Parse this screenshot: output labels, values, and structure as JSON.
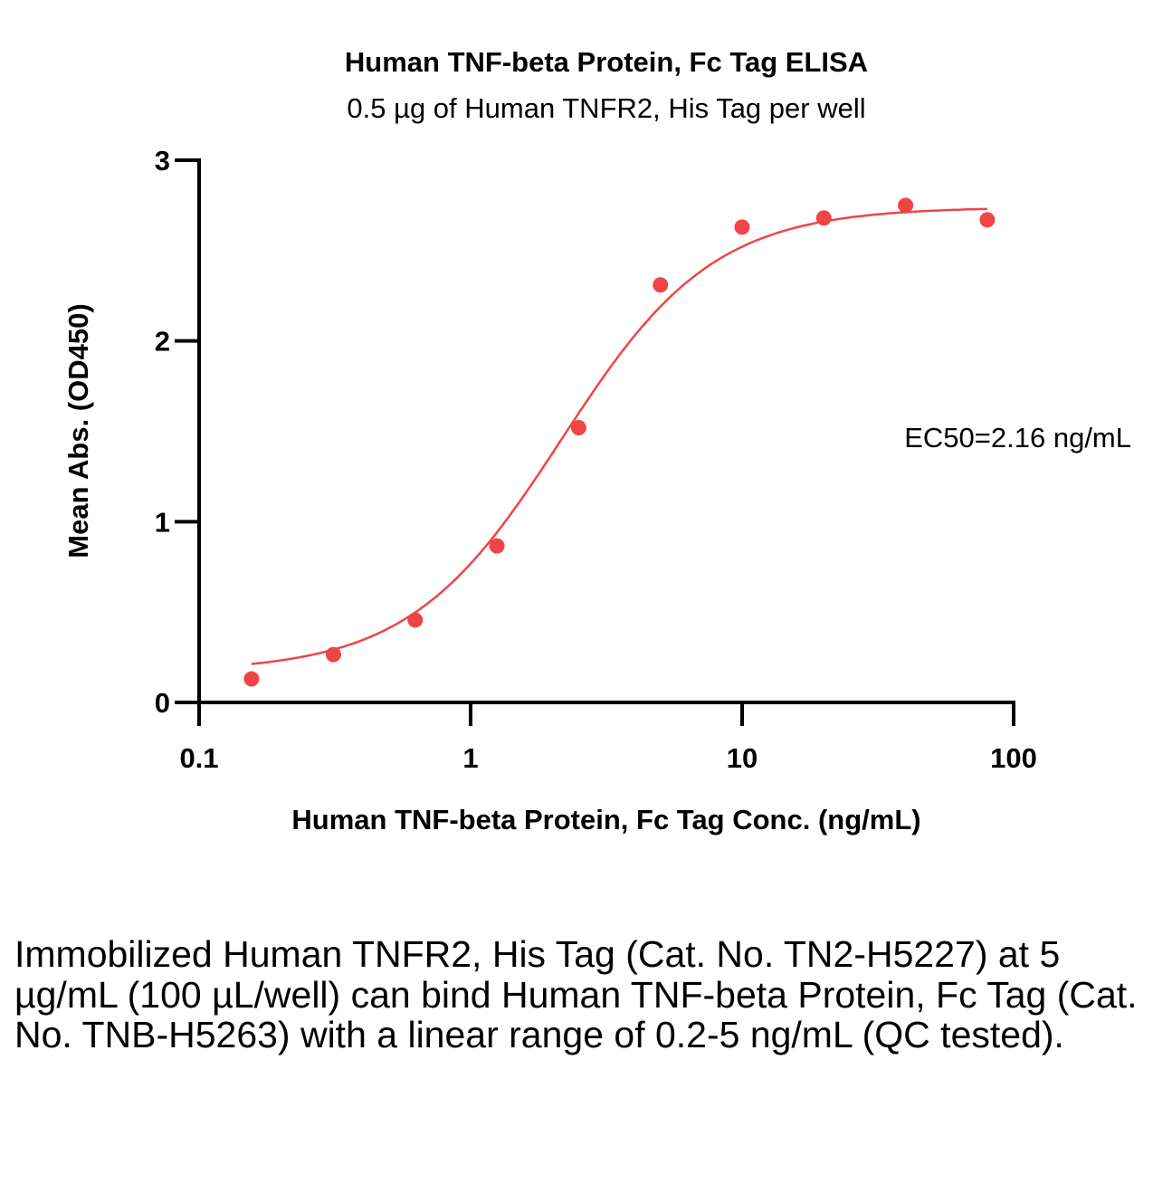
{
  "chart_data": {
    "type": "scatter",
    "title": "Human TNF-beta Protein, Fc Tag ELISA",
    "subtitle": "0.5 µg of Human TNFR2, His Tag per well",
    "xlabel": "Human TNF-beta Protein, Fc Tag Conc. (ng/mL)",
    "ylabel": "Mean Abs. (OD450)",
    "xscale": "log",
    "xlim": [
      0.1,
      100
    ],
    "ylim": [
      0,
      3
    ],
    "xticks": [
      "0.1",
      "1",
      "10",
      "100"
    ],
    "yticks": [
      "0",
      "1",
      "2",
      "3"
    ],
    "grid": false,
    "annotation": "EC50=2.16 ng/mL",
    "series": [
      {
        "name": "Human TNF-beta Protein, Fc Tag",
        "color": "#f04545",
        "x": [
          0.156,
          0.3125,
          0.625,
          1.25,
          2.5,
          5,
          10,
          20,
          40,
          80
        ],
        "y": [
          0.13,
          0.265,
          0.456,
          0.866,
          1.52,
          2.31,
          2.63,
          2.68,
          2.75,
          2.67
        ]
      }
    ],
    "fit": {
      "model": "4PL",
      "bottom": 0.17,
      "top": 2.74,
      "ec50": 2.16,
      "hill": 1.55
    }
  },
  "caption": "Immobilized Human TNFR2, His Tag (Cat. No. TN2-H5227) at 5 µg/mL (100 µL/well) can bind Human TNF-beta Protein, Fc Tag (Cat. No. TNB-H5263) with a linear range of 0.2-5 ng/mL (QC tested)."
}
